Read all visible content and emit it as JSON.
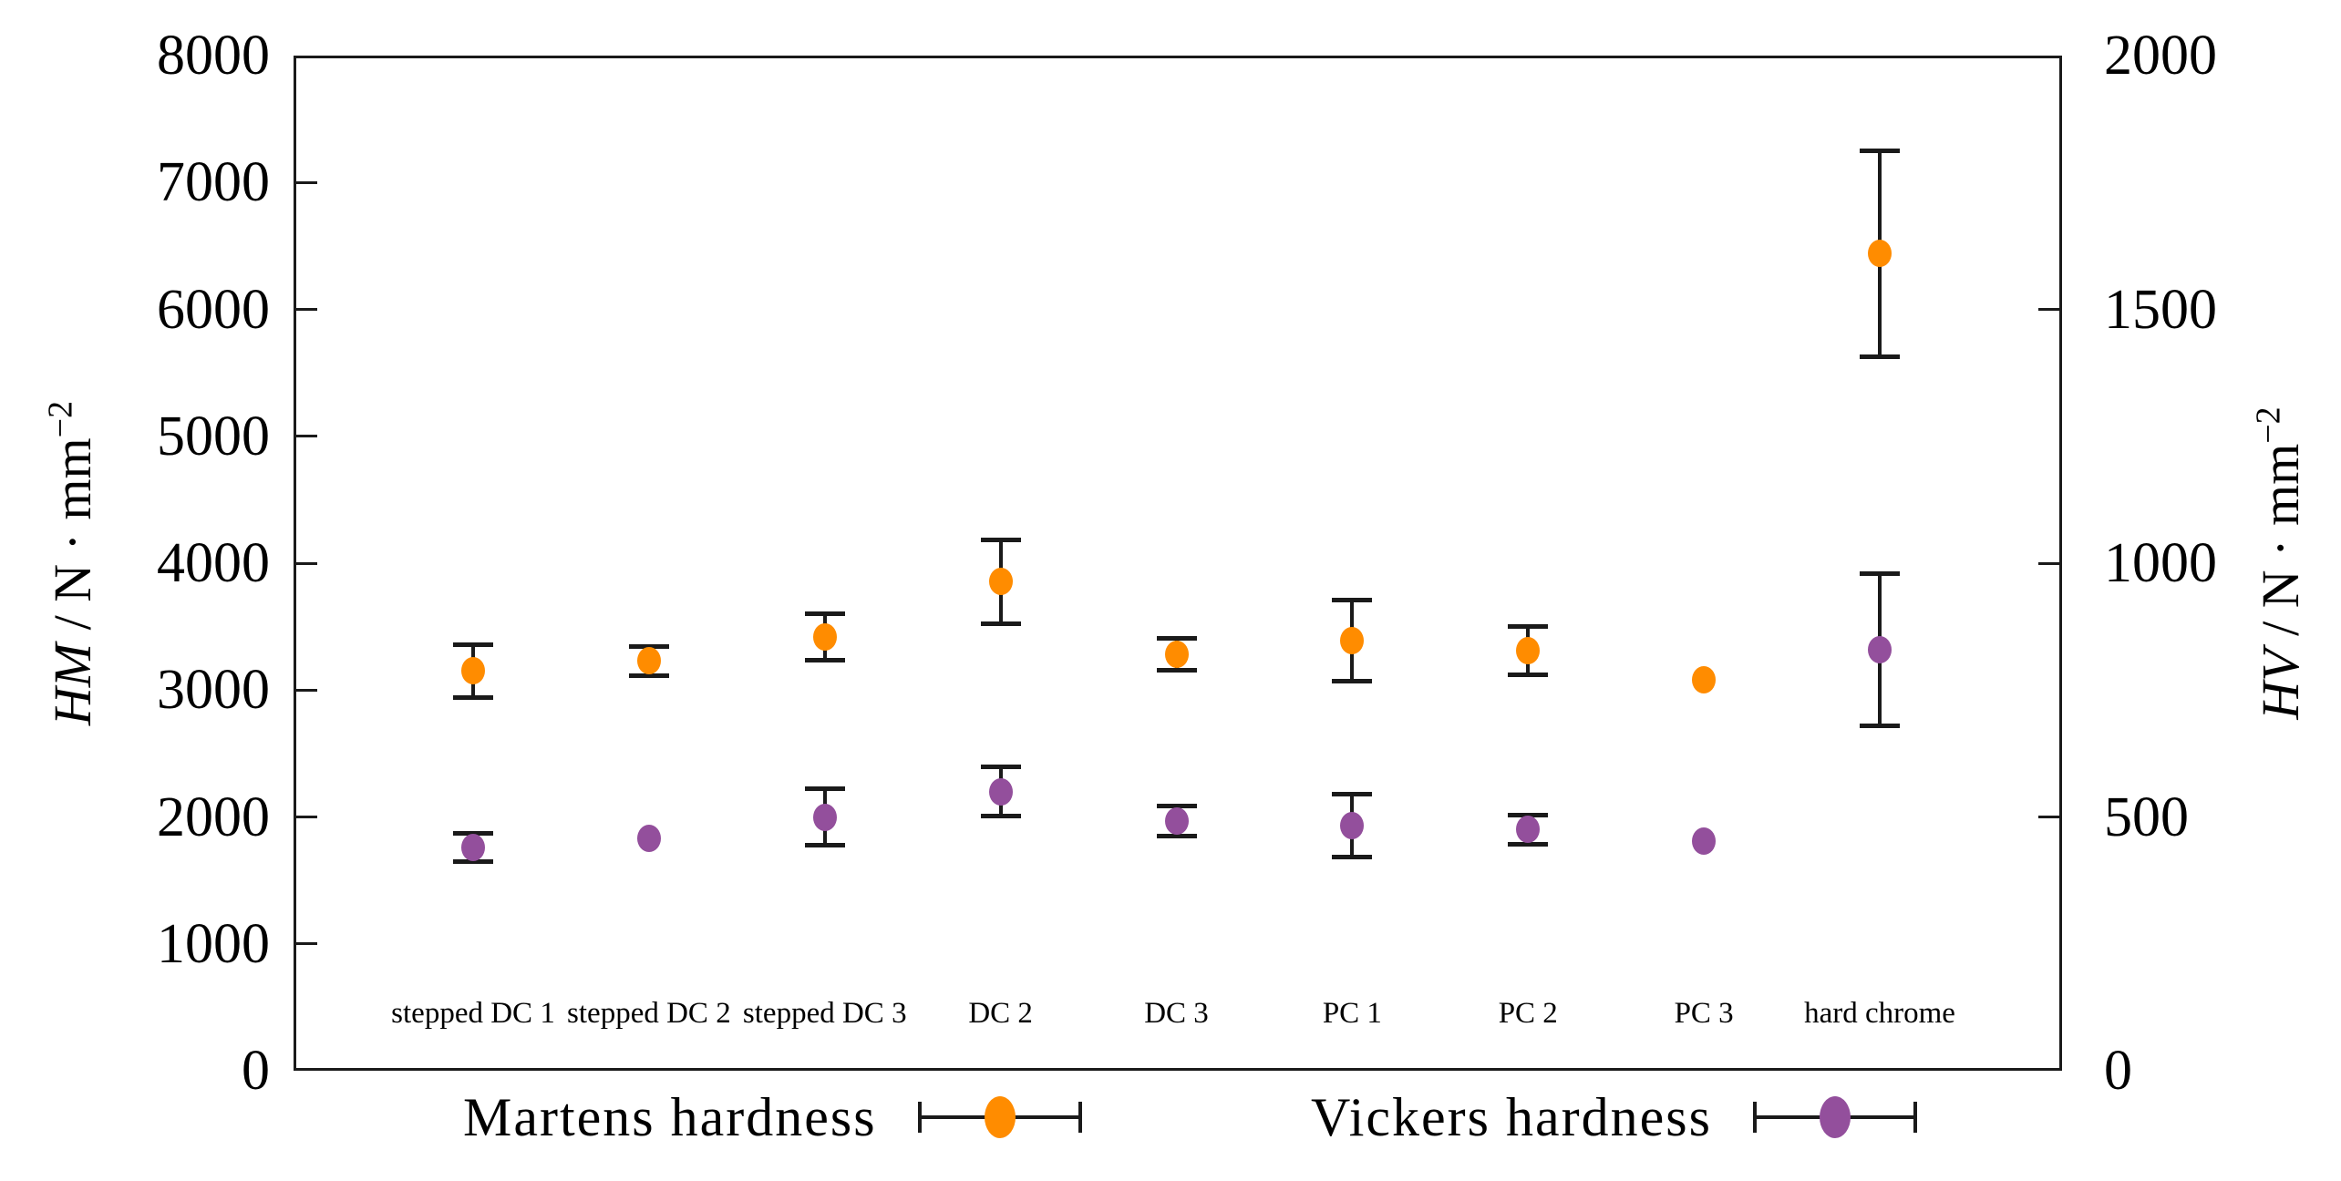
{
  "chart_data": {
    "type": "scatter",
    "title": "",
    "grid": false,
    "legend_position": "bottom",
    "categories": [
      "stepped DC 1",
      "stepped DC 2",
      "stepped DC 3",
      "DC 2",
      "DC 3",
      "PC 1",
      "PC 2",
      "PC 3",
      "hard chrome"
    ],
    "series": [
      {
        "name": "Martens hardness",
        "axis": "left",
        "color": "#FF8C00",
        "values": [
          3150,
          3230,
          3420,
          3855,
          3280,
          3390,
          3310,
          3080,
          6440
        ],
        "errors": [
          210,
          115,
          185,
          330,
          125,
          320,
          190,
          45,
          810
        ]
      },
      {
        "name": "Vickers hardness",
        "axis": "right",
        "color": "#934F9C",
        "values": [
          440,
          458,
          500,
          550,
          492,
          483,
          475,
          452,
          830
        ],
        "errors": [
          28,
          8,
          55,
          48,
          30,
          62,
          28,
          15,
          150
        ]
      }
    ],
    "left_axis": {
      "symbol": "HM",
      "unit": " / N · mm",
      "exponent": "−2",
      "range": [
        0,
        8000
      ],
      "ticks": [
        0,
        1000,
        2000,
        3000,
        4000,
        5000,
        6000,
        7000,
        8000
      ],
      "tick_labels": [
        "0",
        "1000",
        "2000",
        "3000",
        "4000",
        "5000",
        "6000",
        "7000",
        "8000"
      ]
    },
    "right_axis": {
      "symbol": "HV",
      "unit": " / N · mm",
      "exponent": "−2",
      "range": [
        0,
        2000
      ],
      "ticks": [
        0,
        500,
        1000,
        1500,
        2000
      ],
      "tick_labels": [
        "0",
        "500",
        "1000",
        "1500",
        "2000"
      ]
    },
    "legend": [
      {
        "label": "Martens hardness",
        "series": 0
      },
      {
        "label": "Vickers hardness",
        "series": 1
      }
    ],
    "colors": {
      "axis_line": "#1a1a1a",
      "martens": "#FF8C00",
      "vickers": "#934F9C",
      "background": "#ffffff"
    }
  }
}
